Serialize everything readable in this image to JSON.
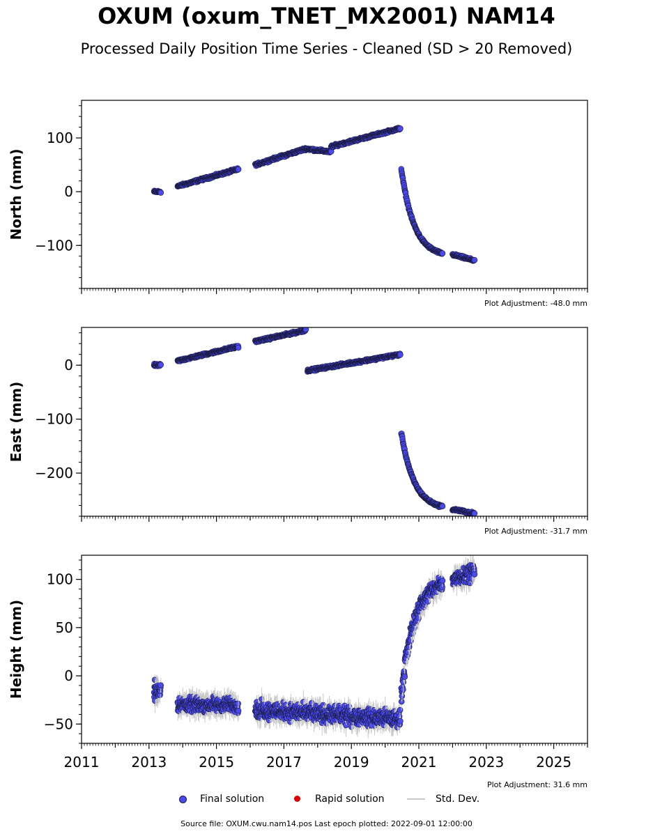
{
  "title": "OXUM (oxum_TNET_MX2001) NAM14",
  "subtitle": "Processed Daily Position Time Series - Cleaned (SD > 20 Removed)",
  "colors": {
    "final": "#4a4af0",
    "final_edge": "#1a1a40",
    "rapid": "#dd0000",
    "stddev": "#c8c8c8"
  },
  "legend": {
    "final": "Final solution",
    "rapid": "Rapid solution",
    "stddev": "Std. Dev."
  },
  "source_text": "Source file: OXUM.cwu.nam14.pos  Last epoch plotted: 2022-09-01 12:00:00",
  "chart_data": [
    {
      "type": "scatter",
      "ylabel": "North (mm)",
      "adjustment": "Plot Adjustment: -48.0 mm",
      "xlim": [
        2011,
        2026
      ],
      "ylim": [
        -180,
        170
      ],
      "yticks": [
        100,
        0,
        -100
      ],
      "segments": [
        {
          "x": [
            2013.15,
            2013.35
          ],
          "y": [
            0,
            0
          ],
          "noise": 1.5
        },
        {
          "x": [
            2013.85,
            2015.65
          ],
          "y": [
            10,
            42
          ],
          "noise": 1.5
        },
        {
          "x": [
            2016.15,
            2017.65
          ],
          "y": [
            50,
            80
          ],
          "noise": 1.5
        },
        {
          "x": [
            2017.65,
            2018.4
          ],
          "y": [
            80,
            74
          ],
          "noise": 1.5
        },
        {
          "x": [
            2018.4,
            2020.45
          ],
          "y": [
            84,
            118
          ],
          "noise": 1.5
        },
        {
          "x": [
            2020.48,
            2021.7
          ],
          "y": [
            42,
            -115
          ],
          "noise": 1.5,
          "curve": "decay"
        },
        {
          "x": [
            2022.0,
            2022.65
          ],
          "y": [
            -117,
            -128
          ],
          "noise": 1.5
        }
      ]
    },
    {
      "type": "scatter",
      "ylabel": "East (mm)",
      "adjustment": "Plot Adjustment: -31.7 mm",
      "xlim": [
        2011,
        2026
      ],
      "ylim": [
        -280,
        70
      ],
      "yticks": [
        0,
        -100,
        -200
      ],
      "segments": [
        {
          "x": [
            2013.15,
            2013.35
          ],
          "y": [
            0,
            0
          ],
          "noise": 1.5
        },
        {
          "x": [
            2013.85,
            2015.65
          ],
          "y": [
            8,
            35
          ],
          "noise": 1.5
        },
        {
          "x": [
            2016.15,
            2017.65
          ],
          "y": [
            44,
            65
          ],
          "noise": 1.5
        },
        {
          "x": [
            2017.7,
            2020.45
          ],
          "y": [
            -10,
            20
          ],
          "noise": 1.5
        },
        {
          "x": [
            2020.48,
            2021.7
          ],
          "y": [
            -125,
            -262
          ],
          "noise": 1.5,
          "curve": "decay"
        },
        {
          "x": [
            2022.0,
            2022.65
          ],
          "y": [
            -267,
            -275
          ],
          "noise": 1.5
        }
      ]
    },
    {
      "type": "scatter",
      "ylabel": "Height (mm)",
      "adjustment": "Plot Adjustment: 31.6 mm",
      "xlim": [
        2011,
        2026
      ],
      "ylim": [
        -70,
        125
      ],
      "yticks": [
        100,
        50,
        0,
        -50
      ],
      "xticks": [
        2011,
        2013,
        2015,
        2017,
        2019,
        2021,
        2023,
        2025
      ],
      "segments": [
        {
          "x": [
            2013.15,
            2013.35
          ],
          "y": [
            -15,
            -15
          ],
          "noise": 7
        },
        {
          "x": [
            2013.85,
            2015.65
          ],
          "y": [
            -30,
            -30
          ],
          "noise": 5
        },
        {
          "x": [
            2016.15,
            2020.45
          ],
          "y": [
            -35,
            -45
          ],
          "noise": 6
        },
        {
          "x": [
            2020.48,
            2021.7
          ],
          "y": [
            -20,
            95
          ],
          "noise": 6,
          "curve": "decay"
        },
        {
          "x": [
            2022.0,
            2022.65
          ],
          "y": [
            100,
            110
          ],
          "noise": 6
        }
      ]
    }
  ]
}
